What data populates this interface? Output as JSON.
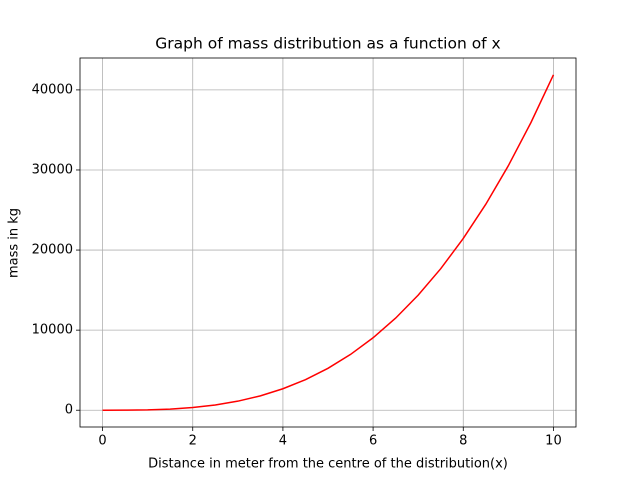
{
  "chart_data": {
    "type": "line",
    "title": "Graph of mass distribution as a function of x",
    "x_label": "Distance in meter from the centre of the distribution(x)",
    "y_label": "mass in kg",
    "x": [
      0,
      0.5,
      1,
      1.5,
      2,
      2.5,
      3,
      3.5,
      4,
      4.5,
      5,
      5.5,
      6,
      6.5,
      7,
      7.5,
      8,
      8.5,
      9,
      9.5,
      10
    ],
    "series": [
      {
        "color": "#ff0000",
        "values": [
          0,
          5.2,
          41.9,
          141.4,
          335.1,
          654.5,
          1131,
          1796,
          2681,
          3817,
          5236,
          6969,
          9048,
          11503,
          14368,
          17671,
          21447,
          25725,
          30536,
          35914,
          41888
        ]
      }
    ],
    "xlim": [
      -0.5,
      10.5
    ],
    "ylim": [
      -2094.4,
      43982.4
    ],
    "xticks": [
      0,
      2,
      4,
      6,
      8,
      10
    ],
    "yticks": [
      0,
      10000,
      20000,
      30000,
      40000
    ],
    "grid": true
  }
}
